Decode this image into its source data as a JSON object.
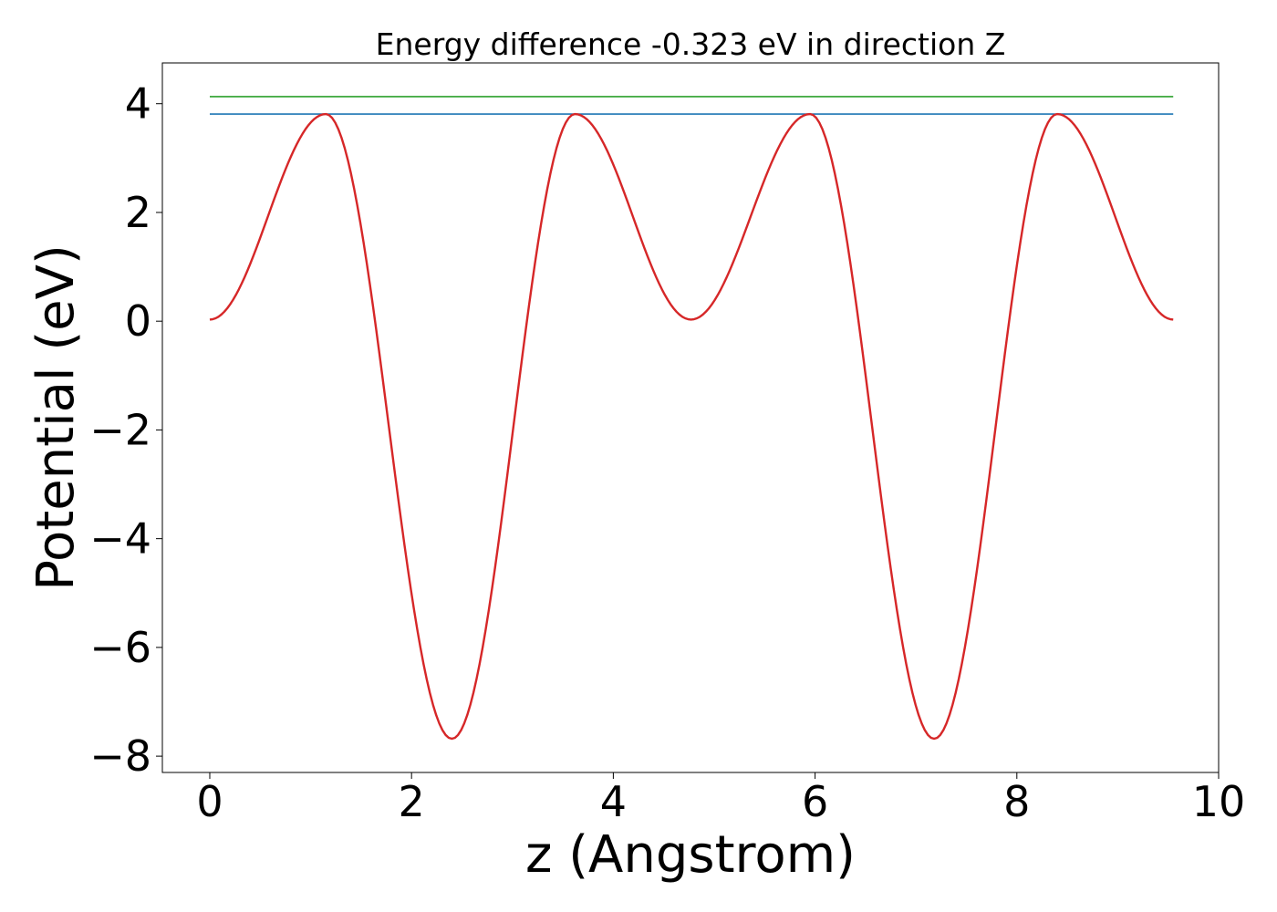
{
  "chart_data": {
    "type": "line",
    "title": "Energy difference -0.323 eV in direction Z",
    "xlabel": "z (Angstrom)",
    "ylabel": "Potential (eV)",
    "xlim": [
      -0.47,
      10.0
    ],
    "ylim": [
      -8.3,
      4.75
    ],
    "x_ticks": [
      0,
      2,
      4,
      6,
      8,
      10
    ],
    "x_tick_labels": [
      "0",
      "2",
      "4",
      "6",
      "8",
      "10"
    ],
    "y_ticks": [
      4,
      2,
      0,
      -2,
      -4,
      -6,
      -8
    ],
    "y_tick_labels": [
      "4",
      "2",
      "0",
      "−2",
      "−4",
      "−6",
      "−8"
    ],
    "grid": false,
    "legend": false,
    "series": [
      {
        "color": "#2ca02c",
        "style": "horizontal",
        "x": [
          0.0,
          9.55
        ],
        "y": [
          4.13,
          4.13
        ]
      },
      {
        "color": "#1f77b4",
        "style": "horizontal",
        "x": [
          0.0,
          9.55
        ],
        "y": [
          3.81,
          3.81
        ]
      },
      {
        "color": "#d62728",
        "style": "curve",
        "x": [
          0.0,
          1.15,
          2.4,
          3.62,
          4.77,
          5.95,
          7.18,
          8.4,
          9.55
        ],
        "y": [
          0.03,
          3.81,
          -7.68,
          3.81,
          0.03,
          3.81,
          -7.68,
          3.81,
          0.03
        ]
      }
    ]
  }
}
